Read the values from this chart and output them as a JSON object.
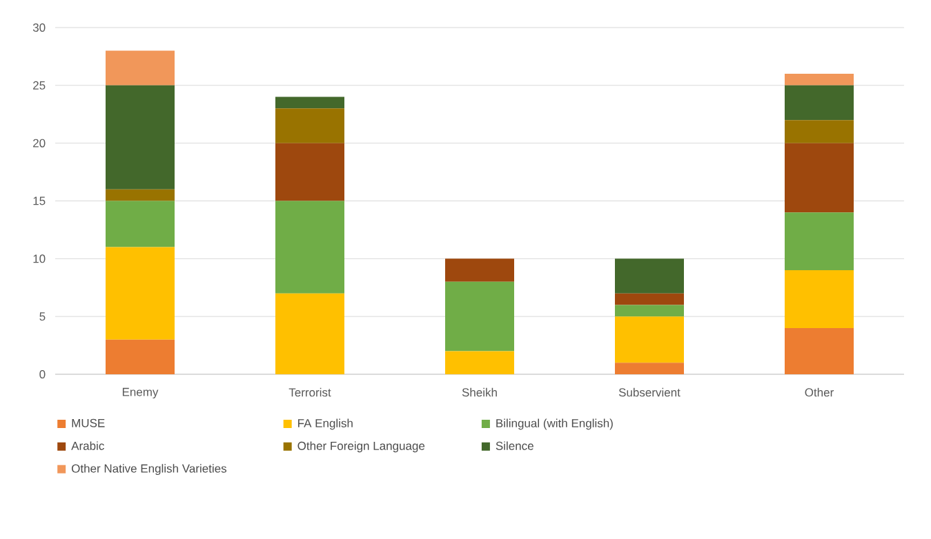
{
  "chart_data": {
    "type": "bar",
    "stacked": true,
    "categories": [
      "Enemy",
      "Terrorist",
      "Sheikh",
      "Subservient",
      "Other"
    ],
    "series": [
      {
        "name": "MUSE",
        "color": "#ed7d31",
        "values": [
          3,
          0,
          0,
          1,
          4
        ]
      },
      {
        "name": "FA English",
        "color": "#ffc000",
        "values": [
          8,
          7,
          2,
          4,
          5
        ]
      },
      {
        "name": "Bilingual (with English)",
        "color": "#70ad47",
        "values": [
          4,
          8,
          6,
          1,
          5
        ]
      },
      {
        "name": "Arabic",
        "color": "#9e480e",
        "values": [
          0,
          5,
          2,
          1,
          6
        ]
      },
      {
        "name": "Other Foreign Language",
        "color": "#997300",
        "values": [
          1,
          3,
          0,
          0,
          2
        ]
      },
      {
        "name": "Silence",
        "color": "#43682b",
        "values": [
          9,
          1,
          0,
          3,
          3
        ]
      },
      {
        "name": "Other Native English Varieties",
        "color": "#f1975a",
        "values": [
          3,
          0,
          0,
          0,
          1
        ]
      }
    ],
    "ylim": [
      0,
      30
    ],
    "yticks": [
      0,
      5,
      10,
      15,
      20,
      25,
      30
    ],
    "grid": "y",
    "legend": "bottom"
  }
}
